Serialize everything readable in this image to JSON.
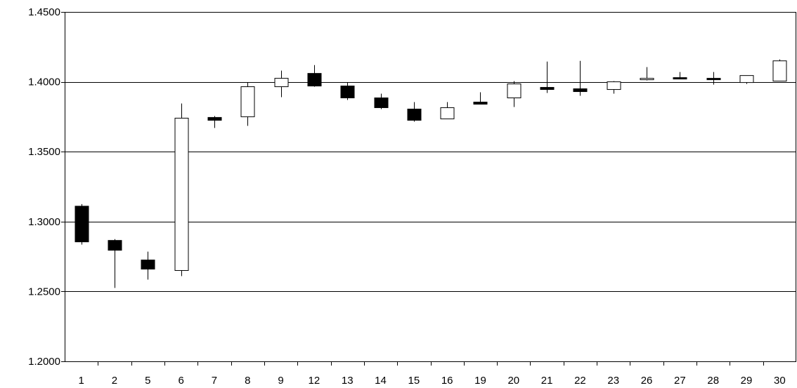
{
  "chart_data": {
    "type": "candlestick",
    "categories": [
      "1",
      "2",
      "5",
      "6",
      "7",
      "8",
      "9",
      "12",
      "13",
      "14",
      "15",
      "16",
      "19",
      "20",
      "21",
      "22",
      "23",
      "26",
      "27",
      "28",
      "29",
      "30"
    ],
    "series": [
      {
        "open": [
          1.311,
          1.2865,
          1.2725,
          1.265,
          1.3745,
          1.375,
          1.3965,
          1.406,
          1.397,
          1.3885,
          1.3805,
          1.3735,
          1.3855,
          1.3885,
          1.396,
          1.395,
          1.3945,
          1.4015,
          1.403,
          1.4025,
          1.3995,
          1.4005
        ],
        "high": [
          1.3125,
          1.2875,
          1.2785,
          1.3845,
          1.3755,
          1.3995,
          1.408,
          1.412,
          1.3995,
          1.3915,
          1.3855,
          1.3855,
          1.3925,
          1.4005,
          1.4145,
          1.415,
          1.4005,
          1.4105,
          1.407,
          1.407,
          1.4045,
          1.416
        ],
        "low": [
          1.2835,
          1.2525,
          1.2585,
          1.261,
          1.367,
          1.3685,
          1.389,
          1.3965,
          1.387,
          1.3805,
          1.3715,
          1.3735,
          1.384,
          1.382,
          1.392,
          1.39,
          1.3915,
          1.401,
          1.402,
          1.398,
          1.3985,
          1.4005
        ],
        "close": [
          1.2855,
          1.2795,
          1.266,
          1.374,
          1.3725,
          1.3965,
          1.4025,
          1.397,
          1.3885,
          1.3815,
          1.3725,
          1.3815,
          1.384,
          1.3985,
          1.3945,
          1.393,
          1.4,
          1.4025,
          1.4025,
          1.4015,
          1.4045,
          1.415
        ]
      }
    ],
    "yticks": [
      "1.2000",
      "1.2500",
      "1.3000",
      "1.3500",
      "1.4000",
      "1.4500"
    ],
    "ylim": [
      1.2,
      1.45
    ],
    "grid": true,
    "colors": {
      "up": "#ffffff",
      "down": "#000000",
      "line": "#000000"
    }
  }
}
